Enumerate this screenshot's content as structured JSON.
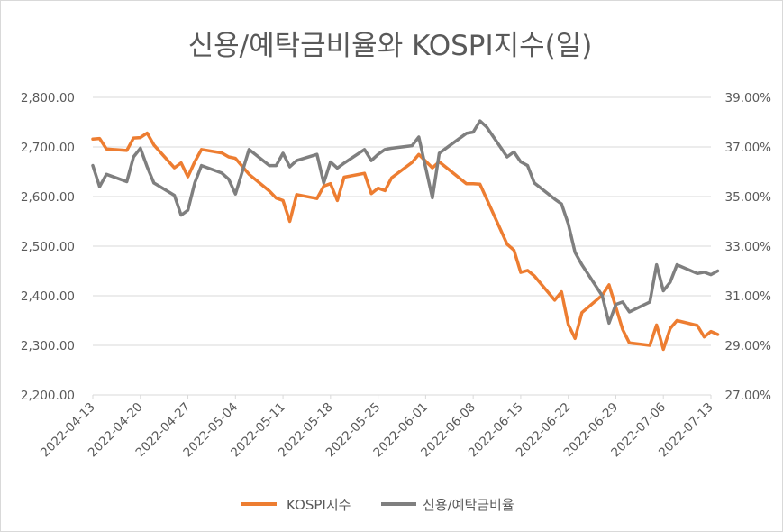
{
  "chart_data": {
    "type": "line",
    "title": "신용/예탁금비율와 KOSPI지수(일)",
    "xlabel": "",
    "ylabel": "",
    "x_ticks": [
      "2022-04-13",
      "2022-04-20",
      "2022-04-27",
      "2022-05-04",
      "2022-05-11",
      "2022-05-18",
      "2022-05-25",
      "2022-06-01",
      "2022-06-08",
      "2022-06-15",
      "2022-06-22",
      "2022-06-29",
      "2022-07-06",
      "2022-07-13"
    ],
    "y_left": {
      "lim": [
        2200,
        2800
      ],
      "ticks": [
        "2,200.00",
        "2,300.00",
        "2,400.00",
        "2,500.00",
        "2,600.00",
        "2,700.00",
        "2,800.00"
      ]
    },
    "y_right": {
      "lim": [
        27,
        39
      ],
      "ticks": [
        "27.00%",
        "29.00%",
        "31.00%",
        "33.00%",
        "35.00%",
        "37.00%",
        "39.00%"
      ]
    },
    "grid": true,
    "legend": "bottom",
    "series": [
      {
        "name": "KOSPI지수",
        "axis": "left",
        "color": "#ED7D31",
        "points": [
          [
            "2022-04-13",
            2716
          ],
          [
            "2022-04-14",
            2717
          ],
          [
            "2022-04-15",
            2696
          ],
          [
            "2022-04-18",
            2693
          ],
          [
            "2022-04-19",
            2718
          ],
          [
            "2022-04-20",
            2719
          ],
          [
            "2022-04-21",
            2728
          ],
          [
            "2022-04-22",
            2704
          ],
          [
            "2022-04-25",
            2658
          ],
          [
            "2022-04-26",
            2668
          ],
          [
            "2022-04-27",
            2640
          ],
          [
            "2022-04-28",
            2670
          ],
          [
            "2022-04-29",
            2695
          ],
          [
            "2022-05-02",
            2688
          ],
          [
            "2022-05-03",
            2680
          ],
          [
            "2022-05-04",
            2677
          ],
          [
            "2022-05-06",
            2645
          ],
          [
            "2022-05-09",
            2611
          ],
          [
            "2022-05-10",
            2597
          ],
          [
            "2022-05-11",
            2592
          ],
          [
            "2022-05-12",
            2550
          ],
          [
            "2022-05-13",
            2604
          ],
          [
            "2022-05-16",
            2596
          ],
          [
            "2022-05-17",
            2621
          ],
          [
            "2022-05-18",
            2626
          ],
          [
            "2022-05-19",
            2592
          ],
          [
            "2022-05-20",
            2639
          ],
          [
            "2022-05-23",
            2647
          ],
          [
            "2022-05-24",
            2606
          ],
          [
            "2022-05-25",
            2617
          ],
          [
            "2022-05-26",
            2612
          ],
          [
            "2022-05-27",
            2638
          ],
          [
            "2022-05-30",
            2669
          ],
          [
            "2022-05-31",
            2685
          ],
          [
            "2022-06-02",
            2658
          ],
          [
            "2022-06-03",
            2670
          ],
          [
            "2022-06-07",
            2626
          ],
          [
            "2022-06-08",
            2626
          ],
          [
            "2022-06-09",
            2625
          ],
          [
            "2022-06-10",
            2595
          ],
          [
            "2022-06-13",
            2504
          ],
          [
            "2022-06-14",
            2492
          ],
          [
            "2022-06-15",
            2447
          ],
          [
            "2022-06-16",
            2451
          ],
          [
            "2022-06-17",
            2440
          ],
          [
            "2022-06-20",
            2391
          ],
          [
            "2022-06-21",
            2408
          ],
          [
            "2022-06-22",
            2342
          ],
          [
            "2022-06-23",
            2314
          ],
          [
            "2022-06-24",
            2366
          ],
          [
            "2022-06-27",
            2401
          ],
          [
            "2022-06-28",
            2422
          ],
          [
            "2022-06-29",
            2377
          ],
          [
            "2022-06-30",
            2332
          ],
          [
            "2022-07-01",
            2305
          ],
          [
            "2022-07-04",
            2300
          ],
          [
            "2022-07-05",
            2341
          ],
          [
            "2022-07-06",
            2292
          ],
          [
            "2022-07-07",
            2334
          ],
          [
            "2022-07-08",
            2350
          ],
          [
            "2022-07-11",
            2340
          ],
          [
            "2022-07-12",
            2317
          ],
          [
            "2022-07-13",
            2328
          ],
          [
            "2022-07-14",
            2322
          ]
        ]
      },
      {
        "name": "신용/예탁금비율",
        "axis": "right",
        "color": "#7F7F7F",
        "points": [
          [
            "2022-04-13",
            36.25
          ],
          [
            "2022-04-14",
            35.4
          ],
          [
            "2022-04-15",
            35.9
          ],
          [
            "2022-04-18",
            35.6
          ],
          [
            "2022-04-19",
            36.6
          ],
          [
            "2022-04-20",
            36.95
          ],
          [
            "2022-04-21",
            36.2
          ],
          [
            "2022-04-22",
            35.55
          ],
          [
            "2022-04-25",
            35.05
          ],
          [
            "2022-04-26",
            34.25
          ],
          [
            "2022-04-27",
            34.45
          ],
          [
            "2022-04-28",
            35.55
          ],
          [
            "2022-04-29",
            36.25
          ],
          [
            "2022-05-02",
            35.95
          ],
          [
            "2022-05-03",
            35.7
          ],
          [
            "2022-05-04",
            35.1
          ],
          [
            "2022-05-06",
            36.9
          ],
          [
            "2022-05-09",
            36.25
          ],
          [
            "2022-05-10",
            36.25
          ],
          [
            "2022-05-11",
            36.75
          ],
          [
            "2022-05-12",
            36.2
          ],
          [
            "2022-05-13",
            36.45
          ],
          [
            "2022-05-16",
            36.7
          ],
          [
            "2022-05-17",
            35.55
          ],
          [
            "2022-05-18",
            36.4
          ],
          [
            "2022-05-19",
            36.15
          ],
          [
            "2022-05-20",
            36.35
          ],
          [
            "2022-05-23",
            36.9
          ],
          [
            "2022-05-24",
            36.45
          ],
          [
            "2022-05-25",
            36.7
          ],
          [
            "2022-05-26",
            36.9
          ],
          [
            "2022-05-27",
            36.95
          ],
          [
            "2022-05-30",
            37.05
          ],
          [
            "2022-05-31",
            37.4
          ],
          [
            "2022-06-02",
            34.95
          ],
          [
            "2022-06-03",
            36.75
          ],
          [
            "2022-06-07",
            37.55
          ],
          [
            "2022-06-08",
            37.6
          ],
          [
            "2022-06-09",
            38.05
          ],
          [
            "2022-06-10",
            37.8
          ],
          [
            "2022-06-13",
            36.6
          ],
          [
            "2022-06-14",
            36.8
          ],
          [
            "2022-06-15",
            36.4
          ],
          [
            "2022-06-16",
            36.25
          ],
          [
            "2022-06-17",
            35.55
          ],
          [
            "2022-06-20",
            34.9
          ],
          [
            "2022-06-21",
            34.7
          ],
          [
            "2022-06-22",
            33.9
          ],
          [
            "2022-06-23",
            32.75
          ],
          [
            "2022-06-24",
            32.25
          ],
          [
            "2022-06-27",
            31.0
          ],
          [
            "2022-06-28",
            29.9
          ],
          [
            "2022-06-29",
            30.65
          ],
          [
            "2022-06-30",
            30.75
          ],
          [
            "2022-07-01",
            30.35
          ],
          [
            "2022-07-04",
            30.75
          ],
          [
            "2022-07-05",
            32.25
          ],
          [
            "2022-07-06",
            31.2
          ],
          [
            "2022-07-07",
            31.55
          ],
          [
            "2022-07-08",
            32.25
          ],
          [
            "2022-07-11",
            31.9
          ],
          [
            "2022-07-12",
            31.95
          ],
          [
            "2022-07-13",
            31.85
          ],
          [
            "2022-07-14",
            32.0
          ]
        ]
      }
    ]
  }
}
